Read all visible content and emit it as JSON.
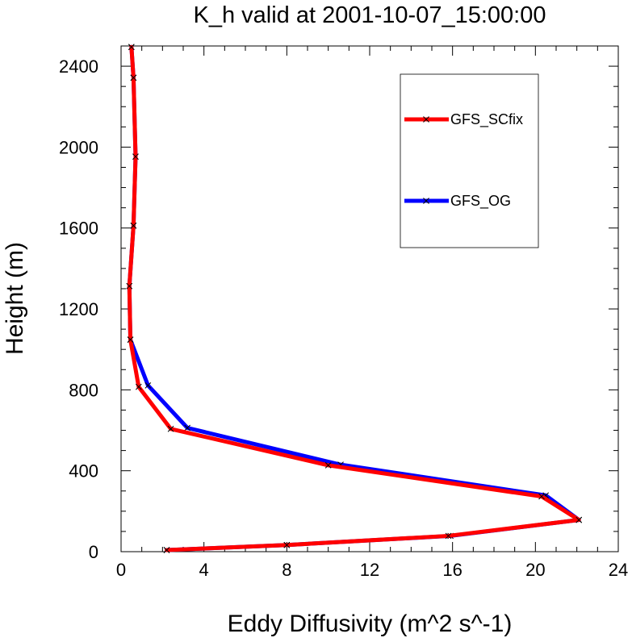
{
  "chart_data": {
    "type": "line",
    "title": "K_h valid at 2001-10-07_15:00:00",
    "xlabel": "Eddy Diffusivity (m^2 s^-1)",
    "ylabel": "Height (m)",
    "xlim": [
      0,
      24
    ],
    "ylim": [
      0,
      2500
    ],
    "x_ticks": [
      0,
      4,
      8,
      12,
      16,
      20,
      24
    ],
    "y_ticks": [
      0,
      400,
      800,
      1200,
      1600,
      2000,
      2400
    ],
    "grid": false,
    "legend_position": "top-right",
    "series": [
      {
        "name": "GFS_OG",
        "color": "#0000ff",
        "marker": "x",
        "points": [
          {
            "x": 2.2,
            "y": 8
          },
          {
            "x": 8.0,
            "y": 33
          },
          {
            "x": 15.9,
            "y": 78
          },
          {
            "x": 22.1,
            "y": 157
          },
          {
            "x": 20.5,
            "y": 278
          },
          {
            "x": 10.6,
            "y": 430
          },
          {
            "x": 3.2,
            "y": 612
          },
          {
            "x": 1.3,
            "y": 822
          },
          {
            "x": 0.45,
            "y": 1048
          },
          {
            "x": 0.4,
            "y": 1313
          },
          {
            "x": 0.6,
            "y": 1612
          },
          {
            "x": 0.7,
            "y": 1953
          },
          {
            "x": 0.6,
            "y": 2343
          },
          {
            "x": 0.5,
            "y": 2495
          }
        ]
      },
      {
        "name": "GFS_SCfix",
        "color": "#ff0000",
        "marker": "x",
        "points": [
          {
            "x": 2.2,
            "y": 8
          },
          {
            "x": 8.0,
            "y": 33
          },
          {
            "x": 15.8,
            "y": 78
          },
          {
            "x": 22.1,
            "y": 157
          },
          {
            "x": 20.3,
            "y": 273
          },
          {
            "x": 10.0,
            "y": 427
          },
          {
            "x": 2.4,
            "y": 607
          },
          {
            "x": 0.85,
            "y": 815
          },
          {
            "x": 0.45,
            "y": 1048
          },
          {
            "x": 0.4,
            "y": 1313
          },
          {
            "x": 0.6,
            "y": 1612
          },
          {
            "x": 0.7,
            "y": 1953
          },
          {
            "x": 0.6,
            "y": 2343
          },
          {
            "x": 0.5,
            "y": 2495
          }
        ]
      }
    ],
    "legend": [
      {
        "name": "GFS_SCfix",
        "color": "#ff0000"
      },
      {
        "name": "GFS_OG",
        "color": "#0000ff"
      }
    ]
  }
}
